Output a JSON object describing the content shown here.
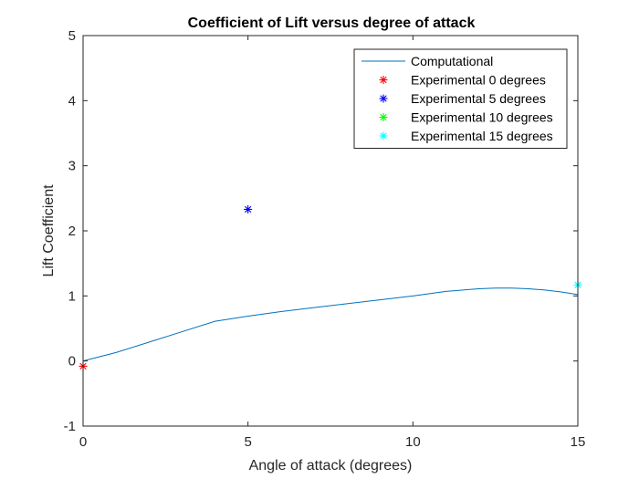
{
  "chart_data": {
    "type": "line",
    "title": "Coefficient of Lift versus degree of attack",
    "xlabel": "Angle of attack (degrees)",
    "ylabel": "Lift Coefficient",
    "xlim": [
      0,
      15
    ],
    "ylim": [
      -1,
      5
    ],
    "xticks": [
      0,
      5,
      10,
      15
    ],
    "yticks": [
      -1,
      0,
      1,
      2,
      3,
      4,
      5
    ],
    "xtick_labels": [
      "0",
      "5",
      "10",
      "15"
    ],
    "ytick_labels": [
      "-1",
      "0",
      "1",
      "2",
      "3",
      "4",
      "5"
    ],
    "grid": false,
    "legend_position": "top-right",
    "series": [
      {
        "name": "Computational",
        "kind": "line",
        "color": "#0072BD",
        "x": [
          0,
          1,
          2,
          3,
          4,
          5,
          6,
          7,
          8,
          9,
          10,
          11,
          12,
          12.5,
          13,
          13.5,
          14,
          14.5,
          15
        ],
        "y": [
          0.0,
          0.13,
          0.29,
          0.45,
          0.61,
          0.69,
          0.76,
          0.82,
          0.88,
          0.94,
          1.0,
          1.07,
          1.11,
          1.12,
          1.12,
          1.11,
          1.09,
          1.06,
          1.02
        ]
      },
      {
        "name": "Experimental 0 degrees",
        "kind": "marker",
        "color": "#FF0000",
        "x": [
          0
        ],
        "y": [
          -0.08
        ]
      },
      {
        "name": "Experimental 5 degrees",
        "kind": "marker",
        "color": "#0000FF",
        "x": [
          5
        ],
        "y": [
          2.33
        ]
      },
      {
        "name": "Experimental 10 degrees",
        "kind": "marker",
        "color": "#00FF00",
        "x": [],
        "y": []
      },
      {
        "name": "Experimental 15 degrees",
        "kind": "marker",
        "color": "#00FFFF",
        "x": [
          15
        ],
        "y": [
          1.17
        ]
      }
    ]
  }
}
